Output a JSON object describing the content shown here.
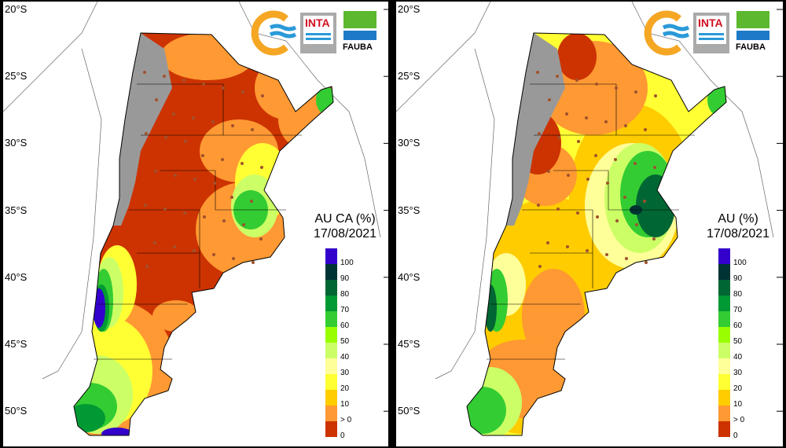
{
  "latitude_labels": [
    "20°S",
    "25°S",
    "30°S",
    "35°S",
    "40°S",
    "45°S",
    "50°S"
  ],
  "logos": {
    "inta_text": "INTA",
    "fauba_text": "FAUBA"
  },
  "panels": [
    {
      "title": "AU CA (%)",
      "date": "17/08/2021"
    },
    {
      "title": "AU (%)",
      "date": "17/08/2021"
    }
  ],
  "legend": {
    "labels": [
      "100",
      "90",
      "80",
      "70",
      "60",
      "50",
      "40",
      "30",
      "20",
      "10",
      "> 0",
      "0"
    ],
    "colors": [
      "#3300cc",
      "#003333",
      "#006633",
      "#009933",
      "#33cc33",
      "#99ff00",
      "#ccff66",
      "#ffff99",
      "#ffff33",
      "#ffcc00",
      "#ff9933",
      "#cc3300"
    ]
  }
}
